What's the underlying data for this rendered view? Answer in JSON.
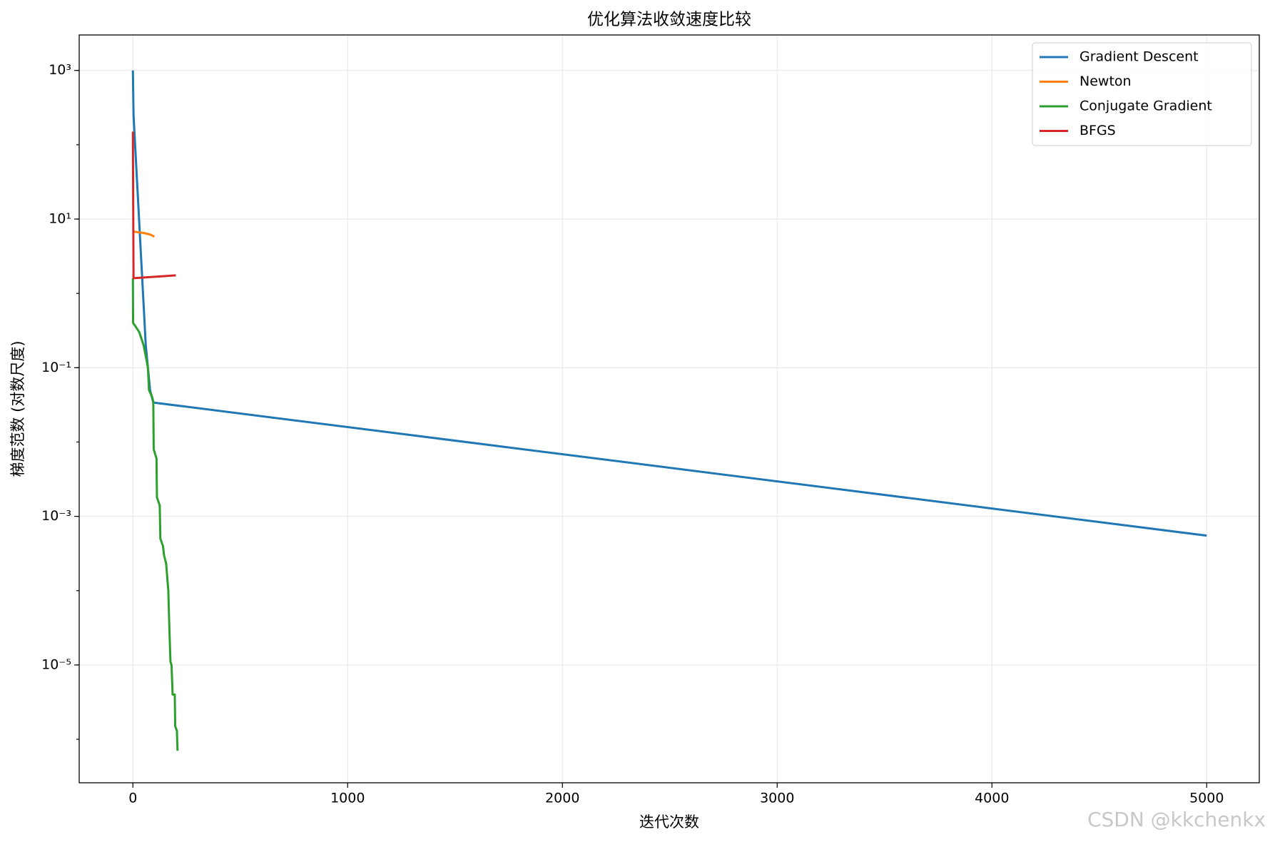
{
  "chart_data": {
    "type": "line",
    "title": "优化算法收敛速度比较",
    "x_label": "迭代次数",
    "y_label": "梯度范数 (对数尺度)",
    "watermark": "CSDN @kkchenkx",
    "log_y": true,
    "grid": true,
    "legend": "upper right",
    "xlim": [
      -250,
      5245
    ],
    "xticks": [
      0,
      1000,
      2000,
      3000,
      4000,
      5000
    ],
    "ylim": [
      2.6e-07,
      3000
    ],
    "yticks": [
      {
        "value": 1000,
        "label": "10³"
      },
      {
        "value": 10,
        "label": "10¹"
      },
      {
        "value": 0.1,
        "label": "10⁻¹"
      },
      {
        "value": 0.001,
        "label": "10⁻³"
      },
      {
        "value": 1e-05,
        "label": "10⁻⁵"
      }
    ],
    "series": [
      {
        "name": "Gradient Descent",
        "color": "#1f77b4",
        "x": [
          0,
          3,
          60,
          80,
          95,
          5000
        ],
        "values": [
          1000,
          250,
          0.2,
          0.05,
          0.034,
          0.00055
        ]
      },
      {
        "name": "Newton",
        "color": "#ff7f0e",
        "x": [
          0,
          50,
          80,
          100
        ],
        "values": [
          6.8,
          6.5,
          6.2,
          5.8
        ]
      },
      {
        "name": "Conjugate Gradient",
        "color": "#2ca02c",
        "x": [
          0,
          1,
          15,
          30,
          50,
          65,
          70,
          75,
          90,
          95,
          97,
          110,
          112,
          125,
          128,
          140,
          145,
          155,
          160,
          165,
          170,
          175,
          180,
          185,
          195,
          197,
          205,
          208
        ],
        "values": [
          1.6,
          0.4,
          0.35,
          0.3,
          0.2,
          0.12,
          0.1,
          0.05,
          0.04,
          0.035,
          0.008,
          0.006,
          0.0018,
          0.0014,
          0.0005,
          0.0004,
          0.0003,
          0.00023,
          0.00015,
          0.0001,
          3e-05,
          1.1e-05,
          1e-05,
          4e-06,
          4e-06,
          1.5e-06,
          1.3e-06,
          7e-07
        ]
      },
      {
        "name": "BFGS",
        "color": "#d62728",
        "x": [
          0,
          3,
          200
        ],
        "values": [
          150,
          1.6,
          1.75
        ]
      }
    ]
  }
}
